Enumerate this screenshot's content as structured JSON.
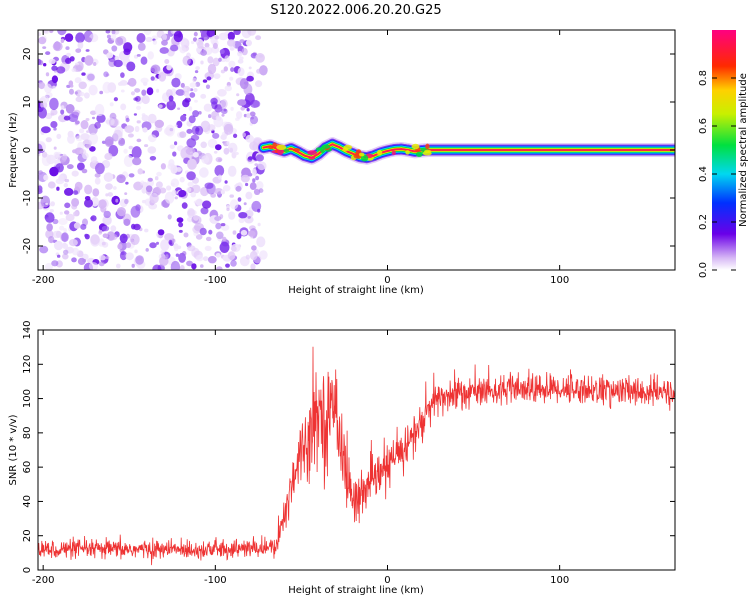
{
  "title": "S120.2022.006.20.20.G25",
  "chart_data": [
    {
      "type": "heatmap",
      "xlabel": "Height of straight line (km)",
      "ylabel": "Frequency (Hz)",
      "xlim": [
        -203,
        167
      ],
      "ylim": [
        -25,
        25
      ],
      "x_ticks": [
        -200,
        -100,
        0,
        100
      ],
      "y_ticks": [
        -20,
        -10,
        0,
        10,
        20
      ],
      "noise_region_x": [
        -203,
        -72
      ],
      "signal_track": {
        "description_free_values": true,
        "x": [
          -72,
          -68,
          -64,
          -60,
          -56,
          -52,
          -48,
          -44,
          -40,
          -36,
          -32,
          -28,
          -24,
          -20,
          -16,
          -12,
          -8,
          -4,
          0,
          4,
          8,
          12,
          16,
          20,
          24,
          28,
          167
        ],
        "freq": [
          0.5,
          0.8,
          0.2,
          -0.2,
          0.3,
          -0.4,
          -1.2,
          -1.6,
          -0.8,
          0.5,
          1.2,
          0.6,
          -0.2,
          -0.8,
          -1.4,
          -1.6,
          -1.2,
          -0.6,
          -0.2,
          0.1,
          0.2,
          0.0,
          -0.3,
          -0.1,
          0.0,
          0.0,
          0.0
        ]
      },
      "colorbar": {
        "label": "Normalized spectral amplitude",
        "ticks": [
          "0.0",
          "0.2",
          "0.4",
          "0.6",
          "0.8"
        ],
        "range": [
          0,
          1
        ]
      }
    },
    {
      "type": "line",
      "xlabel": "Height of straight line (km)",
      "ylabel": "SNR (10 * v/v)",
      "xlim": [
        -203,
        167
      ],
      "ylim": [
        0,
        140
      ],
      "x_ticks": [
        -200,
        -100,
        0,
        100
      ],
      "y_ticks": [
        0,
        20,
        40,
        60,
        80,
        100,
        120,
        140
      ],
      "series": [
        {
          "color": "#ee3333",
          "x": [
            -203,
            -150,
            -100,
            -65,
            -60,
            -55,
            -50,
            -45,
            -40,
            -35,
            -30,
            -25,
            -20,
            -15,
            -10,
            -5,
            0,
            10,
            20,
            25,
            30,
            40,
            50,
            60,
            80,
            100,
            120,
            140,
            167
          ],
          "y": [
            12,
            12,
            12,
            13,
            30,
            55,
            70,
            80,
            95,
            85,
            100,
            60,
            40,
            45,
            50,
            55,
            60,
            72,
            85,
            95,
            100,
            103,
            104,
            105,
            105,
            106,
            105,
            104,
            103
          ],
          "noise": [
            5,
            5,
            5,
            5,
            12,
            15,
            18,
            20,
            25,
            25,
            25,
            20,
            12,
            12,
            12,
            12,
            12,
            12,
            12,
            10,
            10,
            10,
            8,
            8,
            8,
            8,
            8,
            8,
            8
          ]
        }
      ]
    }
  ]
}
